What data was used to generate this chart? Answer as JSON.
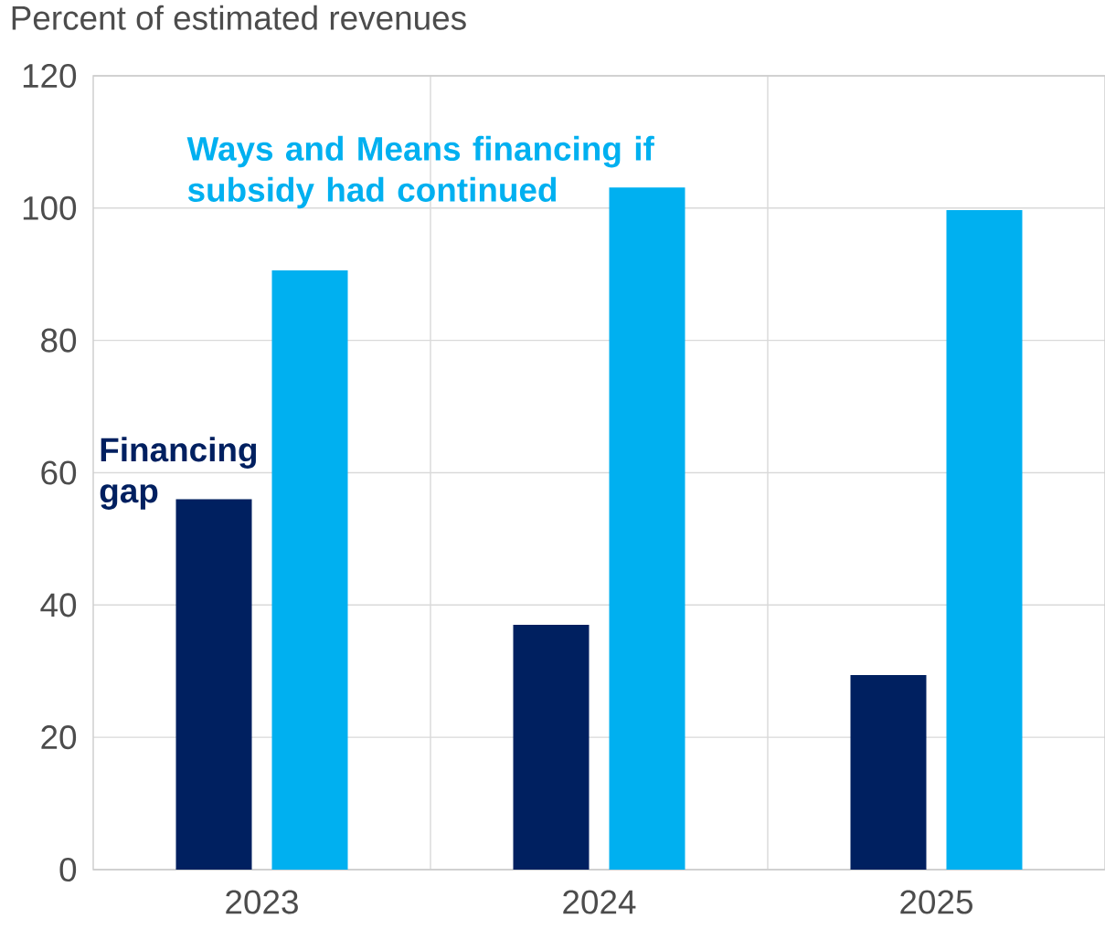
{
  "chart_data": {
    "type": "bar",
    "ylabel": "Percent of estimated revenues",
    "categories": [
      "2023",
      "2024",
      "2025"
    ],
    "series": [
      {
        "name": "Financing gap",
        "color": "#002060",
        "values": [
          56,
          37,
          29.4
        ]
      },
      {
        "name": "Ways and Means financing if subsidy had continued",
        "color": "#00b0f0",
        "values": [
          90.6,
          103.1,
          99.7
        ]
      }
    ],
    "ylim": [
      0,
      120
    ],
    "yticks": [
      0,
      20,
      40,
      60,
      80,
      100,
      120
    ],
    "grid": true,
    "legend": false
  }
}
